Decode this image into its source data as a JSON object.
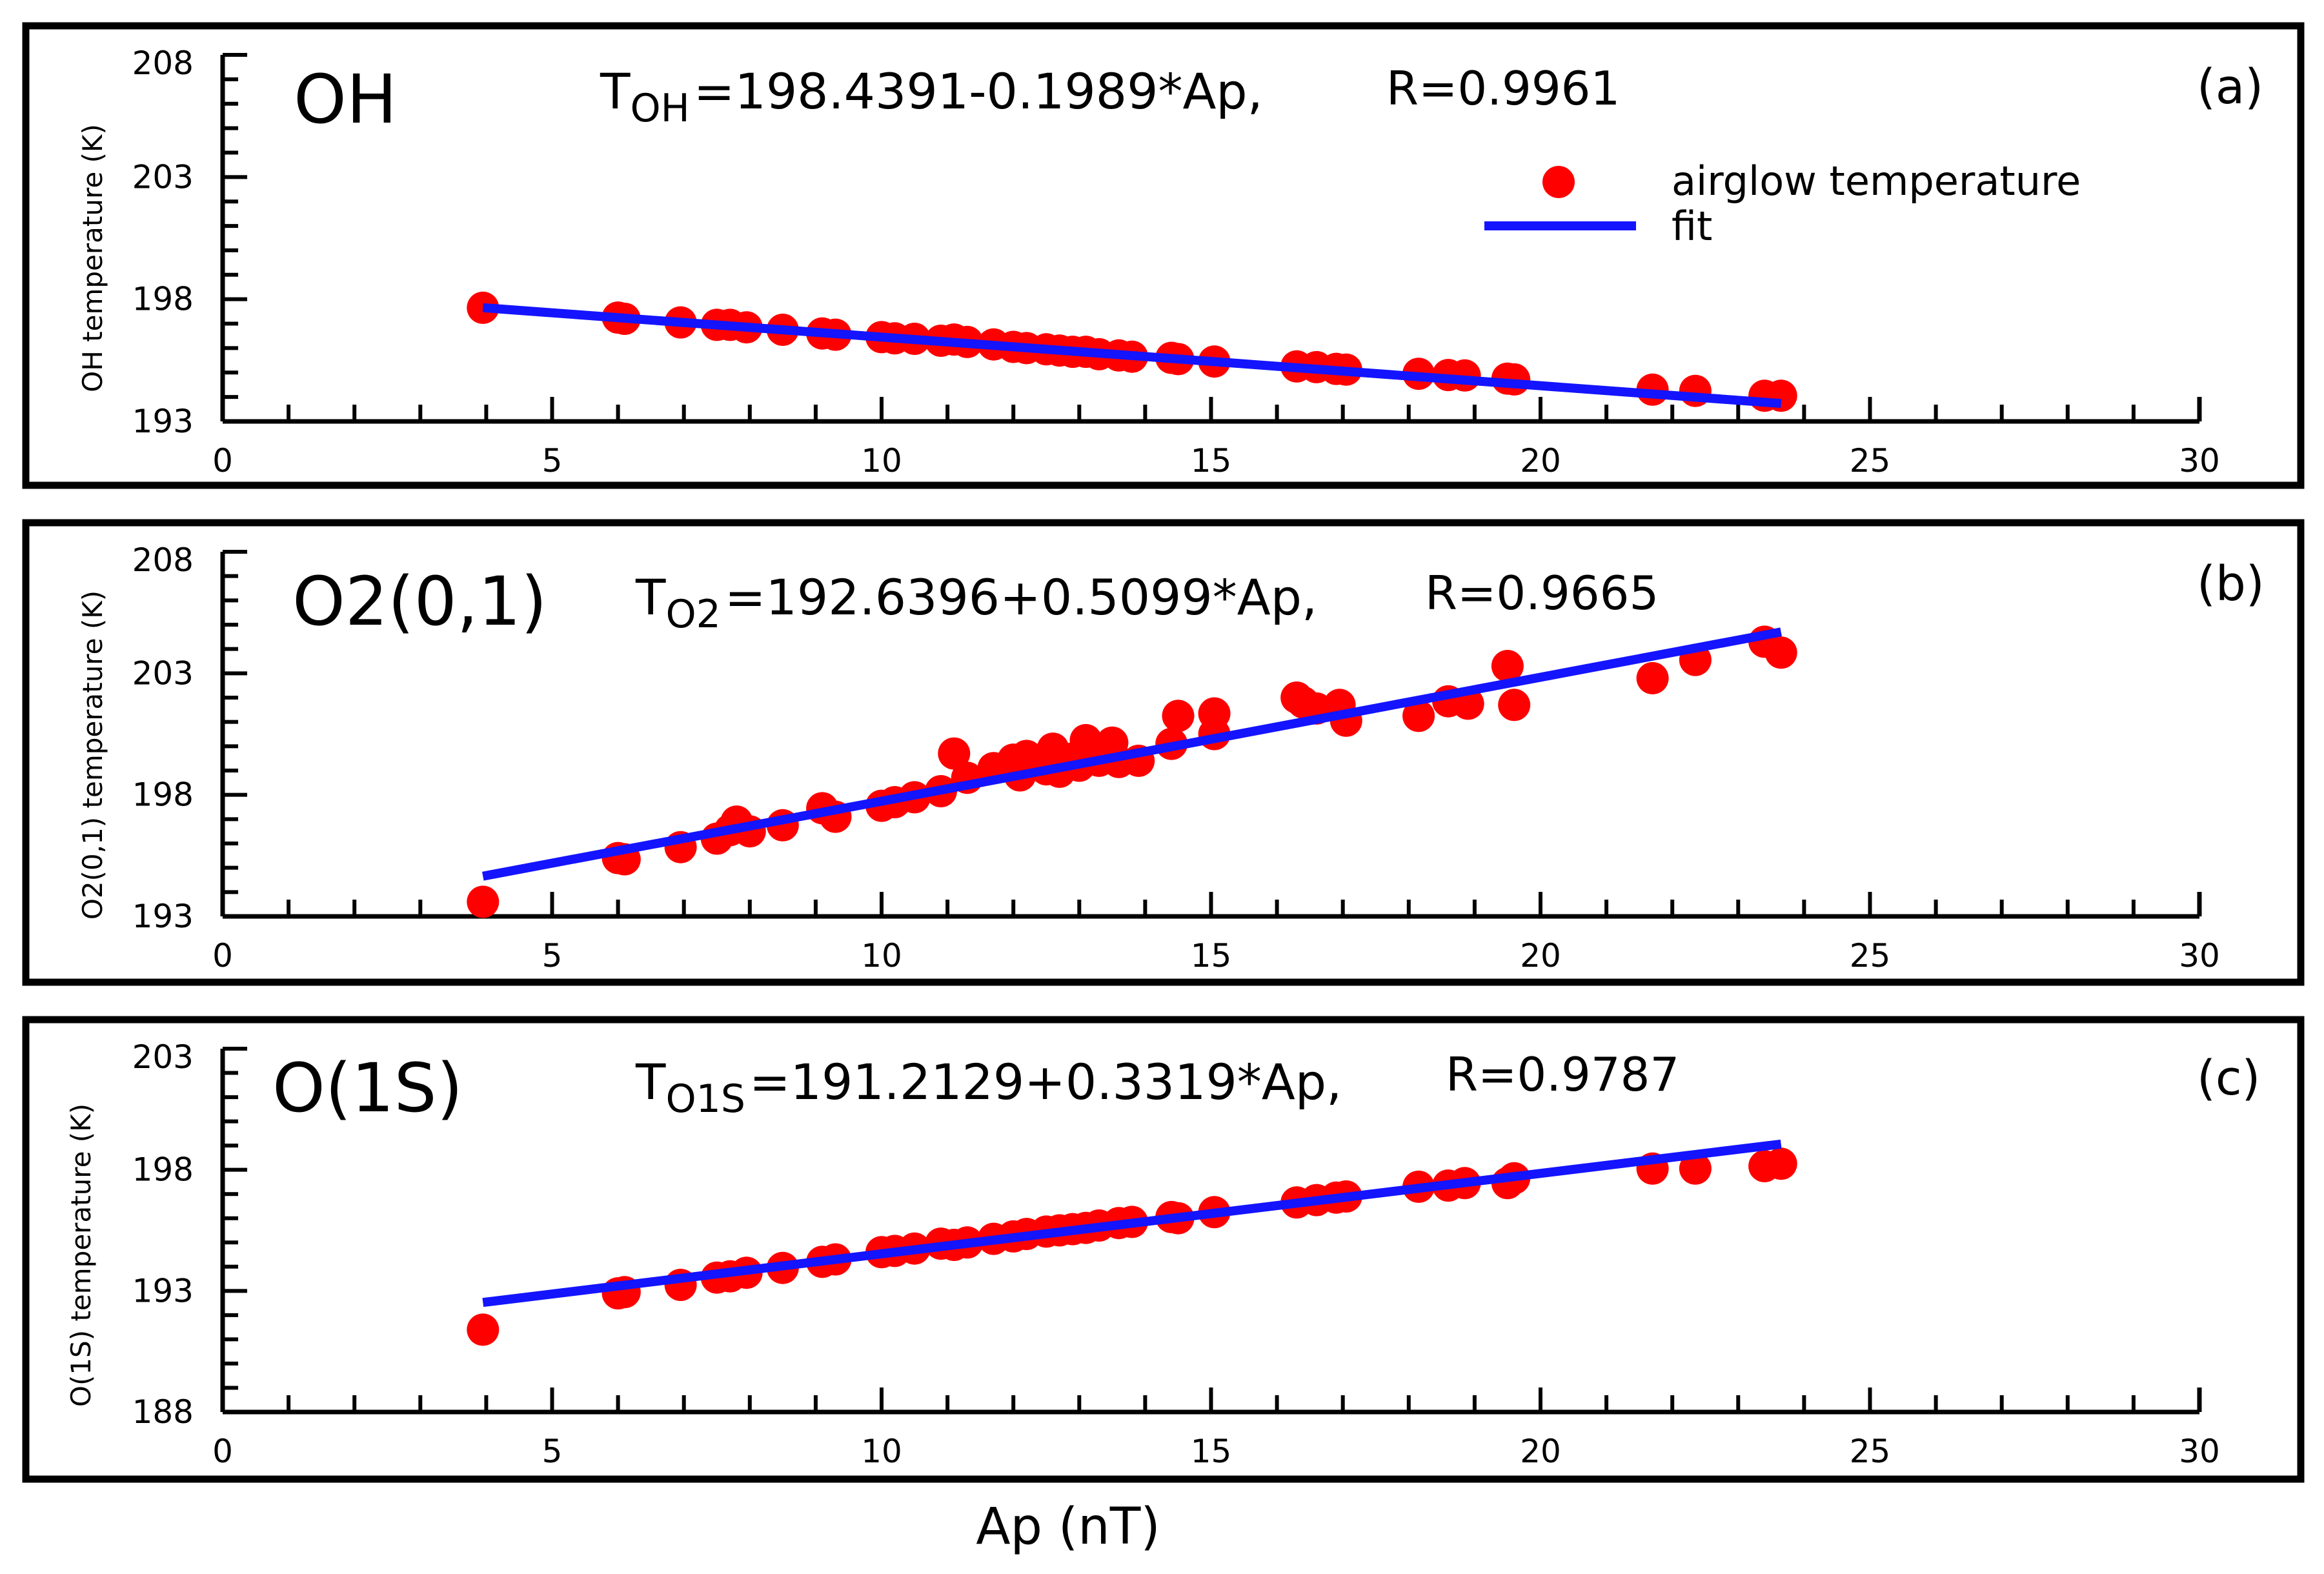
{
  "figure": {
    "xlabel": "Ap (nT)"
  },
  "chart_data": [
    {
      "type": "scatter",
      "panel_letter": "(a)",
      "species_label": "OH",
      "equation": {
        "T": "T",
        "sub": "OH",
        "rhs": "=198.4391-0.1989*Ap,"
      },
      "r_label": "R=0.9961",
      "ylabel": "OH temperature (K)",
      "xlim": [
        0,
        30
      ],
      "ylim": [
        193,
        208
      ],
      "xticks": [
        0,
        5,
        10,
        15,
        20,
        25,
        30
      ],
      "yticks": [
        193,
        198,
        203,
        208
      ],
      "legend": {
        "position": "top-right",
        "entries": [
          {
            "label": "airglow temperature",
            "kind": "marker",
            "color": "#ff0000"
          },
          {
            "label": "fit",
            "kind": "line",
            "color": "#1414ff"
          }
        ]
      },
      "fit": {
        "intercept": 198.4391,
        "slope": -0.1989,
        "x_range": [
          3.95,
          23.65
        ]
      },
      "series": [
        {
          "name": "airglow temperature",
          "points": [
            [
              3.95,
              197.65
            ],
            [
              6.0,
              197.25
            ],
            [
              6.1,
              197.2
            ],
            [
              6.95,
              197.05
            ],
            [
              7.5,
              196.95
            ],
            [
              7.7,
              196.95
            ],
            [
              7.95,
              196.85
            ],
            [
              8.5,
              196.75
            ],
            [
              9.1,
              196.6
            ],
            [
              9.3,
              196.55
            ],
            [
              10.0,
              196.45
            ],
            [
              10.2,
              196.4
            ],
            [
              10.5,
              196.38
            ],
            [
              10.9,
              196.3
            ],
            [
              11.1,
              196.35
            ],
            [
              11.3,
              196.25
            ],
            [
              11.7,
              196.15
            ],
            [
              12.0,
              196.05
            ],
            [
              12.2,
              196.0
            ],
            [
              12.5,
              195.95
            ],
            [
              12.7,
              195.9
            ],
            [
              12.9,
              195.85
            ],
            [
              13.1,
              195.85
            ],
            [
              13.3,
              195.75
            ],
            [
              13.6,
              195.7
            ],
            [
              13.8,
              195.65
            ],
            [
              14.4,
              195.6
            ],
            [
              14.5,
              195.55
            ],
            [
              15.05,
              195.45
            ],
            [
              16.3,
              195.25
            ],
            [
              16.6,
              195.22
            ],
            [
              16.9,
              195.15
            ],
            [
              17.05,
              195.12
            ],
            [
              18.15,
              194.95
            ],
            [
              18.6,
              194.9
            ],
            [
              18.85,
              194.88
            ],
            [
              19.5,
              194.75
            ],
            [
              19.6,
              194.72
            ],
            [
              21.7,
              194.3
            ],
            [
              22.35,
              194.25
            ],
            [
              23.4,
              194.05
            ],
            [
              23.65,
              194.05
            ]
          ]
        }
      ]
    },
    {
      "type": "scatter",
      "panel_letter": "(b)",
      "species_label": "O2(0,1)",
      "equation": {
        "T": "T",
        "sub": "O2",
        "rhs": "=192.6396+0.5099*Ap,"
      },
      "r_label": "R=0.9665",
      "ylabel": "O2(0,1) temperature (K)",
      "xlim": [
        0,
        30
      ],
      "ylim": [
        193,
        208
      ],
      "xticks": [
        0,
        5,
        10,
        15,
        20,
        25,
        30
      ],
      "yticks": [
        193,
        198,
        203,
        208
      ],
      "fit": {
        "intercept": 192.6396,
        "slope": 0.5099,
        "x_range": [
          3.95,
          23.65
        ]
      },
      "series": [
        {
          "name": "airglow temperature",
          "points": [
            [
              3.95,
              193.6
            ],
            [
              6.0,
              195.4
            ],
            [
              6.1,
              195.35
            ],
            [
              6.95,
              195.85
            ],
            [
              7.5,
              196.2
            ],
            [
              7.7,
              196.55
            ],
            [
              7.8,
              196.9
            ],
            [
              8.0,
              196.5
            ],
            [
              8.5,
              196.75
            ],
            [
              9.1,
              197.45
            ],
            [
              9.3,
              197.1
            ],
            [
              10.0,
              197.55
            ],
            [
              10.2,
              197.7
            ],
            [
              10.5,
              197.9
            ],
            [
              10.9,
              198.15
            ],
            [
              11.1,
              199.7
            ],
            [
              11.3,
              198.7
            ],
            [
              11.7,
              199.1
            ],
            [
              12.0,
              199.45
            ],
            [
              12.1,
              198.8
            ],
            [
              12.2,
              199.6
            ],
            [
              12.5,
              199.05
            ],
            [
              12.6,
              199.9
            ],
            [
              12.7,
              198.95
            ],
            [
              12.9,
              199.5
            ],
            [
              13.1,
              200.25
            ],
            [
              13.0,
              199.2
            ],
            [
              13.3,
              199.4
            ],
            [
              13.5,
              200.15
            ],
            [
              13.6,
              199.35
            ],
            [
              13.9,
              199.4
            ],
            [
              14.4,
              200.1
            ],
            [
              14.5,
              201.25
            ],
            [
              15.05,
              201.35
            ],
            [
              15.05,
              200.5
            ],
            [
              16.3,
              202.0
            ],
            [
              16.4,
              201.8
            ],
            [
              16.6,
              201.55
            ],
            [
              16.95,
              201.7
            ],
            [
              17.05,
              201.05
            ],
            [
              18.15,
              201.25
            ],
            [
              18.6,
              201.85
            ],
            [
              18.9,
              201.75
            ],
            [
              19.5,
              203.3
            ],
            [
              19.6,
              201.7
            ],
            [
              21.7,
              202.8
            ],
            [
              22.35,
              203.55
            ],
            [
              23.4,
              204.3
            ],
            [
              23.65,
              203.85
            ]
          ]
        }
      ]
    },
    {
      "type": "scatter",
      "panel_letter": "(c)",
      "species_label": "O(1S)",
      "equation": {
        "T": "T",
        "sub": "O1S",
        "rhs": "=191.2129+0.3319*Ap,"
      },
      "r_label": "R=0.9787",
      "ylabel": "O(1S) temperature (K)",
      "xlim": [
        0,
        30
      ],
      "ylim": [
        188,
        203
      ],
      "xticks": [
        0,
        5,
        10,
        15,
        20,
        25,
        30
      ],
      "yticks": [
        188,
        193,
        198,
        203
      ],
      "fit": {
        "intercept": 191.2129,
        "slope": 0.3319,
        "x_range": [
          3.95,
          23.65
        ]
      },
      "series": [
        {
          "name": "airglow temperature",
          "points": [
            [
              3.95,
              191.4
            ],
            [
              6.0,
              192.9
            ],
            [
              6.1,
              192.95
            ],
            [
              6.95,
              193.25
            ],
            [
              7.5,
              193.55
            ],
            [
              7.7,
              193.6
            ],
            [
              7.95,
              193.75
            ],
            [
              8.5,
              193.95
            ],
            [
              9.1,
              194.2
            ],
            [
              9.3,
              194.3
            ],
            [
              10.0,
              194.6
            ],
            [
              10.2,
              194.65
            ],
            [
              10.5,
              194.75
            ],
            [
              10.9,
              194.95
            ],
            [
              11.1,
              194.9
            ],
            [
              11.3,
              195.0
            ],
            [
              11.7,
              195.15
            ],
            [
              12.0,
              195.25
            ],
            [
              12.2,
              195.35
            ],
            [
              12.5,
              195.45
            ],
            [
              12.7,
              195.5
            ],
            [
              12.9,
              195.55
            ],
            [
              13.1,
              195.6
            ],
            [
              13.3,
              195.7
            ],
            [
              13.6,
              195.8
            ],
            [
              13.8,
              195.85
            ],
            [
              14.4,
              196.05
            ],
            [
              14.5,
              196.0
            ],
            [
              15.05,
              196.25
            ],
            [
              16.3,
              196.65
            ],
            [
              16.6,
              196.75
            ],
            [
              16.9,
              196.85
            ],
            [
              17.05,
              196.9
            ],
            [
              18.15,
              197.3
            ],
            [
              18.6,
              197.35
            ],
            [
              18.85,
              197.45
            ],
            [
              19.5,
              197.45
            ],
            [
              19.6,
              197.65
            ],
            [
              21.7,
              198.05
            ],
            [
              22.35,
              198.05
            ],
            [
              23.4,
              198.15
            ],
            [
              23.65,
              198.25
            ]
          ]
        }
      ]
    }
  ]
}
